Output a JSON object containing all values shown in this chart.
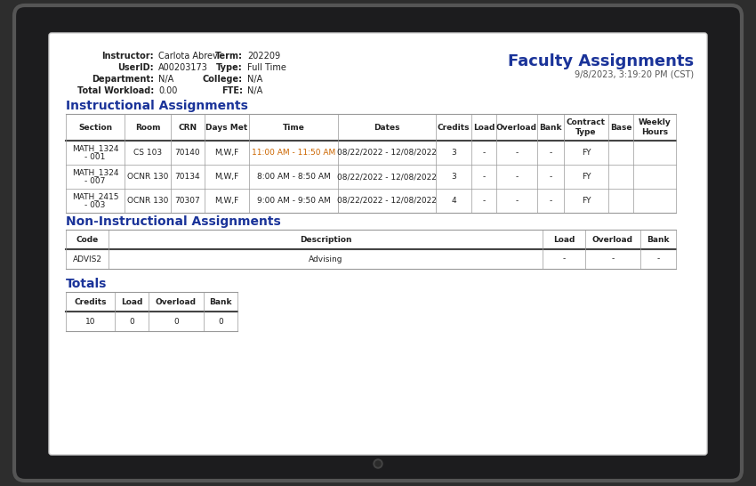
{
  "title": "Faculty Assignments",
  "date": "9/8/2023, 3:19:20 PM (CST)",
  "instructor_label": "Instructor:",
  "instructor_value": "Carlota Abrev",
  "userid_label": "UserID:",
  "userid_value": "A00203173",
  "department_label": "Department:",
  "department_value": "N/A",
  "workload_label": "Total Workload:",
  "workload_value": "0.00",
  "term_label": "Term:",
  "term_value": "202209",
  "type_label": "Type:",
  "type_value": "Full Time",
  "college_label": "College:",
  "college_value": "N/A",
  "fte_label": "FTE:",
  "fte_value": "N/A",
  "section1": "Instructional Assignments",
  "ia_headers": [
    "Section",
    "Room",
    "CRN",
    "Days Met",
    "Time",
    "Dates",
    "Credits",
    "Load",
    "Overload",
    "Bank",
    "Contract\nType",
    "Base",
    "Weekly\nHours"
  ],
  "ia_rows": [
    [
      "MATH_1324\n- 001",
      "CS 103",
      "70140",
      "M,W,F",
      "11:00 AM - 11:50 AM",
      "08/22/2022 - 12/08/2022",
      "3",
      "-",
      "-",
      "-",
      "FY",
      "",
      ""
    ],
    [
      "MATH_1324\n- 007",
      "OCNR 130",
      "70134",
      "M,W,F",
      "8:00 AM - 8:50 AM",
      "08/22/2022 - 12/08/2022",
      "3",
      "-",
      "-",
      "-",
      "FY",
      "",
      ""
    ],
    [
      "MATH_2415\n- 003",
      "OCNR 130",
      "70307",
      "M,W,F",
      "9:00 AM - 9:50 AM",
      "08/22/2022 - 12/08/2022",
      "4",
      "-",
      "-",
      "-",
      "FY",
      "",
      ""
    ]
  ],
  "section2": "Non-Instructional Assignments",
  "nia_headers": [
    "Code",
    "Description",
    "Load",
    "Overload",
    "Bank"
  ],
  "nia_rows": [
    [
      "ADVIS2",
      "Advising",
      "-",
      "-",
      "-"
    ]
  ],
  "section3": "Totals",
  "totals_headers": [
    "Credits",
    "Load",
    "Overload",
    "Bank"
  ],
  "totals_rows": [
    [
      "10",
      "0",
      "0",
      "0"
    ]
  ],
  "bg_color": "#2d2d2d",
  "screen_color": "#ffffff",
  "blue_color": "#1a3399",
  "table_line_color": "#999999",
  "time_color": "#cc6600",
  "tablet_body_color": "#1c1c1e",
  "tablet_edge_color": "#555555",
  "text_dark": "#222222",
  "text_gray": "#555555"
}
